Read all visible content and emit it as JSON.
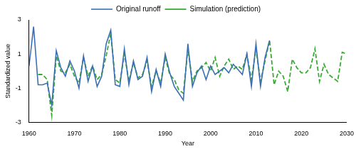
{
  "chart_data": {
    "type": "line",
    "x_label": "Year",
    "y_label": "Standardized value",
    "x": [
      1960,
      1961,
      1962,
      1963,
      1964,
      1965,
      1966,
      1967,
      1968,
      1969,
      1970,
      1971,
      1972,
      1973,
      1974,
      1975,
      1976,
      1977,
      1978,
      1979,
      1980,
      1981,
      1982,
      1983,
      1984,
      1985,
      1986,
      1987,
      1988,
      1989,
      1990,
      1991,
      1992,
      1993,
      1994,
      1995,
      1996,
      1997,
      1998,
      1999,
      2000,
      2001,
      2002,
      2003,
      2004,
      2005,
      2006,
      2007,
      2008,
      2009,
      2010,
      2011,
      2012,
      2013,
      2014,
      2015,
      2016,
      2017,
      2018,
      2019,
      2020,
      2021,
      2022,
      2023,
      2024,
      2025,
      2026,
      2027,
      2028,
      2029,
      2030
    ],
    "series": [
      {
        "name": "Original runoff",
        "color": "#3a6fb5",
        "line_style": "solid",
        "marker": "none",
        "values": [
          0.3,
          2.6,
          -0.8,
          -0.8,
          -0.7,
          -2.0,
          1.2,
          0.2,
          -0.3,
          0.6,
          0.0,
          -1.0,
          0.9,
          -0.6,
          0.3,
          -0.9,
          -0.3,
          1.6,
          2.4,
          -0.8,
          -0.9,
          1.3,
          -0.8,
          0.6,
          -0.5,
          -0.3,
          0.8,
          -1.2,
          0.1,
          -0.9,
          1.0,
          -0.1,
          -0.9,
          -1.3,
          -1.7,
          1.6,
          -0.9,
          -0.1,
          0.3,
          -0.5,
          0.3,
          -0.2,
          0.0,
          0.2,
          -0.1,
          0.4,
          0.1,
          -0.2,
          1.0,
          -0.9,
          1.6,
          -0.9,
          0.8,
          1.8,
          null,
          null,
          null,
          null,
          null,
          null,
          null,
          null,
          null,
          null,
          null,
          null,
          null,
          null,
          null,
          null,
          null
        ]
      },
      {
        "name": "Simulation (prediction)",
        "color": "#3aaa35",
        "line_style": "dashed",
        "marker": "none",
        "values": [
          null,
          null,
          -0.2,
          -0.2,
          -0.5,
          -2.6,
          0.9,
          0.0,
          -0.1,
          0.4,
          -0.3,
          -0.7,
          0.8,
          -0.3,
          0.3,
          -0.5,
          -0.2,
          0.9,
          2.2,
          -0.5,
          -0.7,
          1.0,
          -0.6,
          0.5,
          -0.4,
          -0.2,
          0.6,
          -0.9,
          0.0,
          -0.7,
          0.8,
          -0.2,
          -0.5,
          -1.1,
          -1.3,
          1.3,
          -0.6,
          0.0,
          0.2,
          0.5,
          0.0,
          0.8,
          -0.3,
          0.3,
          0.7,
          0.1,
          0.3,
          0.1,
          1.0,
          -0.5,
          1.3,
          -0.6,
          0.6,
          1.8,
          -0.8,
          0.0,
          -0.3,
          -1.2,
          0.7,
          0.2,
          -0.1,
          -0.1,
          0.2,
          1.3,
          -0.6,
          0.4,
          -0.2,
          -0.4,
          -0.6,
          1.1,
          1.0
        ]
      }
    ],
    "xlim": [
      1960,
      2030
    ],
    "xticks": [
      1960,
      1970,
      1980,
      1990,
      2000,
      2010,
      2020,
      2030
    ],
    "ylim": [
      -3,
      3
    ],
    "yticks": [
      -3,
      -1,
      1,
      3
    ],
    "grid": false,
    "legend": "top"
  }
}
